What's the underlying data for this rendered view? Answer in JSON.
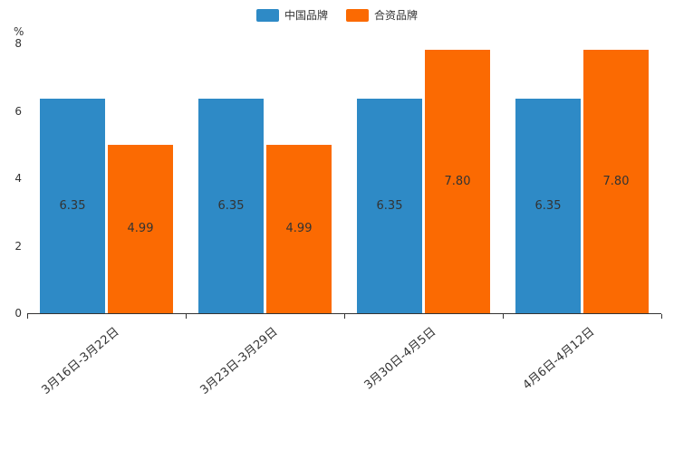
{
  "chart_data": {
    "type": "bar",
    "title": "",
    "unit": "%",
    "categories": [
      "3月16日-3月22日",
      "3月23日-3月29日",
      "3月30日-4月5日",
      "4月6日-4月12日"
    ],
    "series": [
      {
        "name": "中国品牌",
        "color": "#2E8AC6",
        "values": [
          6.35,
          6.35,
          6.35,
          6.35
        ]
      },
      {
        "name": "合资品牌",
        "color": "#FB6A02",
        "values": [
          4.99,
          4.99,
          7.8,
          7.8
        ]
      }
    ],
    "ylim": [
      0,
      8
    ],
    "yticks": [
      0,
      2,
      4,
      6,
      8
    ],
    "legend_position": "top",
    "grid": false,
    "value_labels": "inside-center",
    "value_format": "2dp",
    "axis_color": "#333333",
    "label_color": "#333333"
  }
}
